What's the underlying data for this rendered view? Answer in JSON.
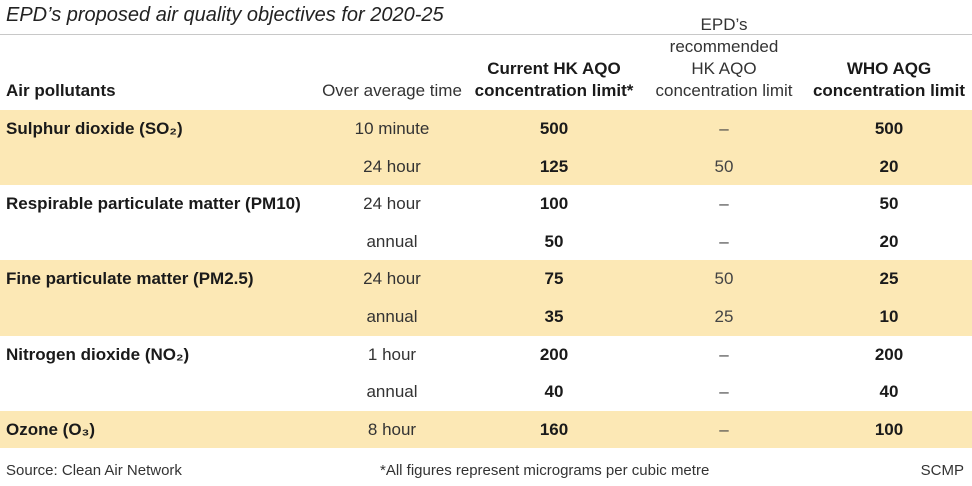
{
  "title": "EPD’s proposed air quality objectives for 2020-25",
  "headers": {
    "pollutant": "Air pollutants",
    "avg_time": "Over average time",
    "current_line1": "Current HK AQO",
    "current_line2": "concentration limit*",
    "epd_line1": "EPD’s recommended",
    "epd_line2": "HK AQO",
    "epd_line3": "concentration limit",
    "who_line1": "WHO AQG",
    "who_line2": "concentration limit"
  },
  "groups": [
    {
      "pollutant": "Sulphur dioxide (SO₂)",
      "shaded": true,
      "rows": [
        {
          "avg": "10 minute",
          "current": "500",
          "epd": "–",
          "who": "500"
        },
        {
          "avg": "24 hour",
          "current": "125",
          "epd": "50",
          "who": "20"
        }
      ]
    },
    {
      "pollutant": "Respirable particulate matter (PM10)",
      "shaded": false,
      "rows": [
        {
          "avg": "24 hour",
          "current": "100",
          "epd": "–",
          "who": "50"
        },
        {
          "avg": "annual",
          "current": "50",
          "epd": "–",
          "who": "20"
        }
      ]
    },
    {
      "pollutant": "Fine particulate matter (PM2.5)",
      "shaded": true,
      "rows": [
        {
          "avg": "24 hour",
          "current": "75",
          "epd": "50",
          "who": "25"
        },
        {
          "avg": "annual",
          "current": "35",
          "epd": "25",
          "who": "10"
        }
      ]
    },
    {
      "pollutant": "Nitrogen dioxide (NO₂)",
      "shaded": false,
      "rows": [
        {
          "avg": "1 hour",
          "current": "200",
          "epd": "–",
          "who": "200"
        },
        {
          "avg": "annual",
          "current": "40",
          "epd": "–",
          "who": "40"
        }
      ]
    },
    {
      "pollutant": "Ozone (O₃)",
      "shaded": true,
      "rows": [
        {
          "avg": "8 hour",
          "current": "160",
          "epd": "–",
          "who": "100"
        }
      ]
    }
  ],
  "footer": {
    "source": "Source: Clean Air Network",
    "note": "*All figures represent micrograms per cubic metre",
    "credit": "SCMP"
  }
}
